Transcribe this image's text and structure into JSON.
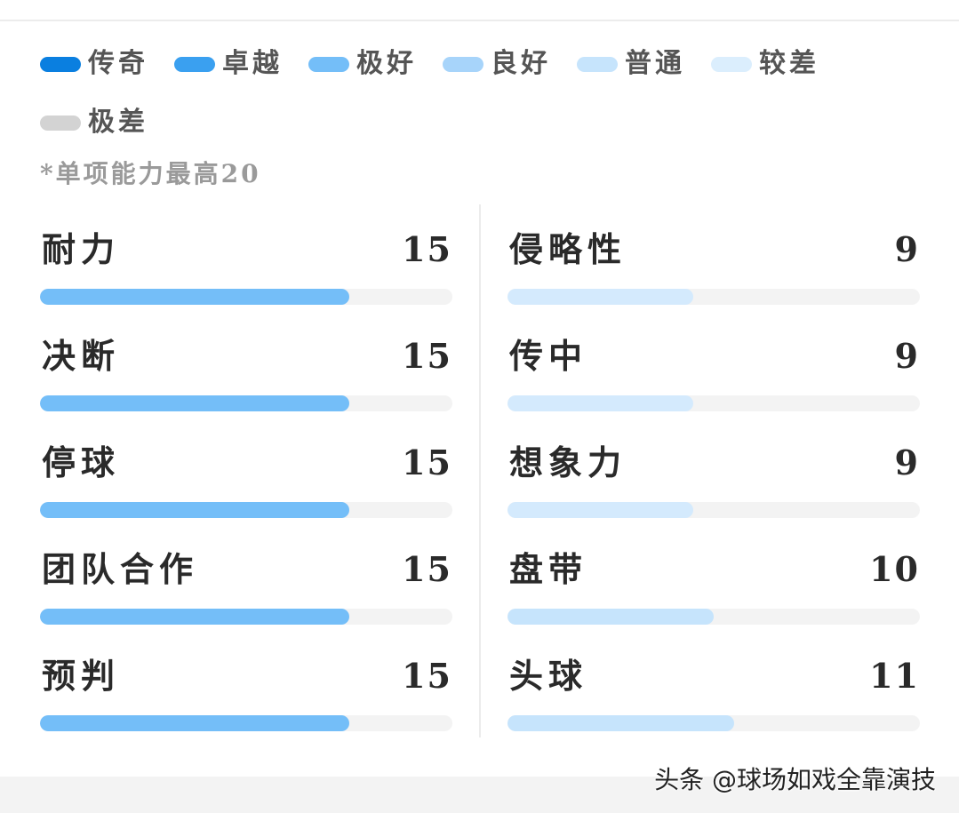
{
  "legend": {
    "items": [
      {
        "label": "传奇",
        "color": "#0a7fe0"
      },
      {
        "label": "卓越",
        "color": "#3aa0f0"
      },
      {
        "label": "极好",
        "color": "#74bef8"
      },
      {
        "label": "良好",
        "color": "#a7d4fa"
      },
      {
        "label": "普通",
        "color": "#c6e4fc"
      },
      {
        "label": "较差",
        "color": "#dbeefd"
      },
      {
        "label": "极差",
        "color": "#d3d3d3"
      }
    ]
  },
  "note": "*单项能力最高20",
  "max_value": 20,
  "stats": {
    "left": [
      {
        "name": "耐力",
        "value": "15",
        "level": 15,
        "color": "#74bef8"
      },
      {
        "name": "决断",
        "value": "15",
        "level": 15,
        "color": "#74bef8"
      },
      {
        "name": "停球",
        "value": "15",
        "level": 15,
        "color": "#74bef8"
      },
      {
        "name": "团队合作",
        "value": "15",
        "level": 15,
        "color": "#74bef8"
      },
      {
        "name": "预判",
        "value": "15",
        "level": 15,
        "color": "#74bef8"
      }
    ],
    "right": [
      {
        "name": "侵略性",
        "value": "9",
        "level": 9,
        "color": "#d4eafd"
      },
      {
        "name": "传中",
        "value": "9",
        "level": 9,
        "color": "#d4eafd"
      },
      {
        "name": "想象力",
        "value": "9",
        "level": 9,
        "color": "#d4eafd"
      },
      {
        "name": "盘带",
        "value": "10",
        "level": 10,
        "color": "#c6e4fc"
      },
      {
        "name": "头球",
        "value": "11",
        "level": 11,
        "color": "#c6e4fc"
      }
    ]
  },
  "watermark": "头条 @球场如戏全靠演技"
}
